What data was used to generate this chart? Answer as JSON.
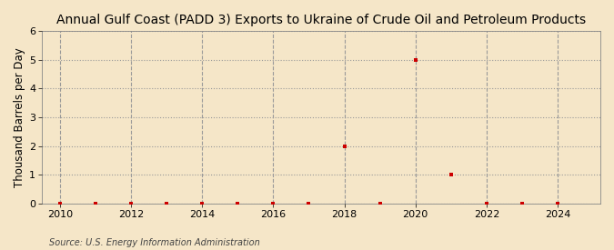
{
  "title": "Annual Gulf Coast (PADD 3) Exports to Ukraine of Crude Oil and Petroleum Products",
  "ylabel": "Thousand Barrels per Day",
  "source": "Source: U.S. Energy Information Administration",
  "background_color": "#f5e6c8",
  "plot_bg_color": "#f5e6c8",
  "grid_color": "#999999",
  "marker_color": "#cc0000",
  "x_data": [
    2010,
    2011,
    2012,
    2013,
    2014,
    2015,
    2016,
    2017,
    2018,
    2019,
    2020,
    2021,
    2022,
    2023,
    2024
  ],
  "y_data": [
    0.0,
    0.0,
    0.0,
    0.0,
    0.0,
    0.0,
    0.0,
    0.0,
    2.0,
    0.0,
    5.0,
    1.0,
    0.0,
    0.0,
    0.0
  ],
  "xlim": [
    2009.5,
    2025.2
  ],
  "ylim": [
    0,
    6
  ],
  "yticks": [
    0,
    1,
    2,
    3,
    4,
    5,
    6
  ],
  "xticks": [
    2010,
    2012,
    2014,
    2016,
    2018,
    2020,
    2022,
    2024
  ],
  "title_fontsize": 10,
  "label_fontsize": 8.5,
  "tick_fontsize": 8,
  "source_fontsize": 7
}
